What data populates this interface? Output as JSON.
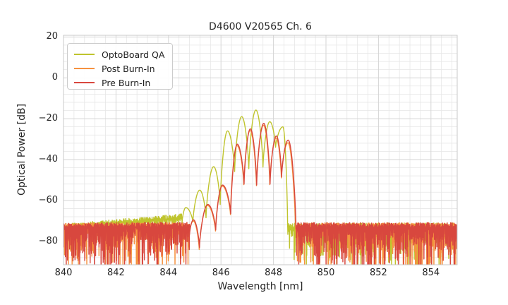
{
  "chart_data": {
    "type": "line",
    "title": "D4600 V20565 Ch. 6",
    "xlabel": "Wavelength [nm]",
    "ylabel": "Optical Power [dB]",
    "xlim": [
      840,
      855
    ],
    "ylim": [
      -91.5,
      20.8
    ],
    "x_ticks": [
      840,
      842,
      844,
      846,
      848,
      850,
      852,
      854
    ],
    "x_tick_labels": [
      "840",
      "842",
      "844",
      "846",
      "848",
      "850",
      "852",
      "854"
    ],
    "y_ticks": [
      20,
      0,
      -20,
      -40,
      -60,
      -80
    ],
    "y_tick_labels": [
      "20",
      "0",
      "−20",
      "−40",
      "−60",
      "−80"
    ],
    "x_minor_step": 0.4,
    "y_minor_step": 4,
    "grid": true,
    "grid_major_color": "#d5d5d5",
    "grid_minor_color": "#e6e6e6",
    "spine_color": "#c8c8c8",
    "background_color": "#ffffff",
    "legend_position": "upper left",
    "legend_labels": [
      "OptoBoard QA",
      "Post Burn-In",
      "Pre Burn-In"
    ],
    "series": [
      {
        "name": "OptoBoard QA",
        "color": "#bfc42d",
        "description": "broad noise shoulder rising from -72.5 dB at 840 nm to -67.5 dB near 844.5 nm, laser mode comb peaking at -15.8 dB near 847.33 nm, noise floor -72.5 dB from 848.5 to 855 nm",
        "segments": [
          {
            "kind": "noise",
            "x": [
              840.0,
              844.52
            ],
            "top": [
              -72.6,
              -67.6
            ],
            "jitter": 1.1,
            "spike_mean": 1.6,
            "seed": 101
          },
          {
            "kind": "comb",
            "points": [
              [
                844.52,
                -70.5
              ],
              [
                844.66,
                -63.5
              ],
              [
                844.93,
                -70.5
              ],
              [
                845.19,
                -55.0
              ],
              [
                845.43,
                -68.5
              ],
              [
                845.72,
                -43.5
              ],
              [
                845.97,
                -62.0
              ],
              [
                846.25,
                -26.0
              ],
              [
                846.52,
                -45.9
              ],
              [
                846.79,
                -19.0
              ],
              [
                847.06,
                -44.5
              ],
              [
                847.33,
                -15.8
              ],
              [
                847.6,
                -43.7
              ],
              [
                847.86,
                -21.5
              ],
              [
                848.08,
                -34.0
              ],
              [
                848.36,
                -24.0
              ],
              [
                848.54,
                -73.0
              ]
            ]
          },
          {
            "kind": "noise",
            "x": [
              848.54,
              855.05
            ],
            "top": [
              -72.6,
              -72.4
            ],
            "jitter": 1.4,
            "spike_mean": 5.5,
            "seed": 102
          }
        ]
      },
      {
        "name": "Post Burn-In",
        "color": "#f6923f",
        "description": "noise floor -72 dB with deep spikes 840-844.8 nm and 848.8-855 nm, mode comb peaks to -23.2 dB near 847.62 nm, nearly coincident with Pre Burn-In trace",
        "segments": [
          {
            "kind": "noise",
            "x": [
              840.0,
              844.78
            ],
            "top": [
              -72.4,
              -72.1
            ],
            "jitter": 1.3,
            "spike_mean": 7.5,
            "seed": 201
          },
          {
            "kind": "comb",
            "points": [
              [
                844.78,
                -78.0
              ],
              [
                844.94,
                -70.0
              ],
              [
                845.17,
                -84.0
              ],
              [
                845.49,
                -62.5
              ],
              [
                845.79,
                -75.0
              ],
              [
                846.05,
                -53.0
              ],
              [
                846.36,
                -67.0
              ],
              [
                846.61,
                -33.2
              ],
              [
                846.87,
                -52.3
              ],
              [
                847.11,
                -25.8
              ],
              [
                847.35,
                -52.8
              ],
              [
                847.62,
                -23.2
              ],
              [
                847.86,
                -52.3
              ],
              [
                848.1,
                -29.5
              ],
              [
                848.3,
                -49.0
              ],
              [
                848.55,
                -31.8
              ],
              [
                848.84,
                -74.5
              ]
            ]
          },
          {
            "kind": "noise",
            "x": [
              848.84,
              855.05
            ],
            "top": [
              -72.3,
              -72.2
            ],
            "jitter": 1.3,
            "spike_mean": 7.5,
            "seed": 202
          }
        ]
      },
      {
        "name": "Pre Burn-In",
        "color": "#d8473e",
        "description": "noise floor -72 dB with deep spikes 840-844.8 nm and 848.9-855 nm, mode comb peaks to -22.3 dB near 847.63 nm",
        "segments": [
          {
            "kind": "noise",
            "x": [
              840.0,
              844.8
            ],
            "top": [
              -72.3,
              -72.0
            ],
            "jitter": 1.3,
            "spike_mean": 7.5,
            "seed": 301
          },
          {
            "kind": "comb",
            "points": [
              [
                844.8,
                -77.0
              ],
              [
                844.95,
                -69.5
              ],
              [
                845.18,
                -83.0
              ],
              [
                845.5,
                -62.0
              ],
              [
                845.8,
                -74.5
              ],
              [
                846.06,
                -52.5
              ],
              [
                846.37,
                -66.5
              ],
              [
                846.62,
                -32.5
              ],
              [
                846.88,
                -52.0
              ],
              [
                847.12,
                -25.0
              ],
              [
                847.36,
                -52.5
              ],
              [
                847.63,
                -22.3
              ],
              [
                847.87,
                -52.0
              ],
              [
                848.11,
                -28.5
              ],
              [
                848.31,
                -48.5
              ],
              [
                848.56,
                -30.5
              ],
              [
                848.86,
                -74.0
              ]
            ]
          },
          {
            "kind": "noise",
            "x": [
              848.86,
              855.05
            ],
            "top": [
              -72.2,
              -72.2
            ],
            "jitter": 1.3,
            "spike_mean": 7.5,
            "seed": 302
          }
        ]
      }
    ]
  }
}
